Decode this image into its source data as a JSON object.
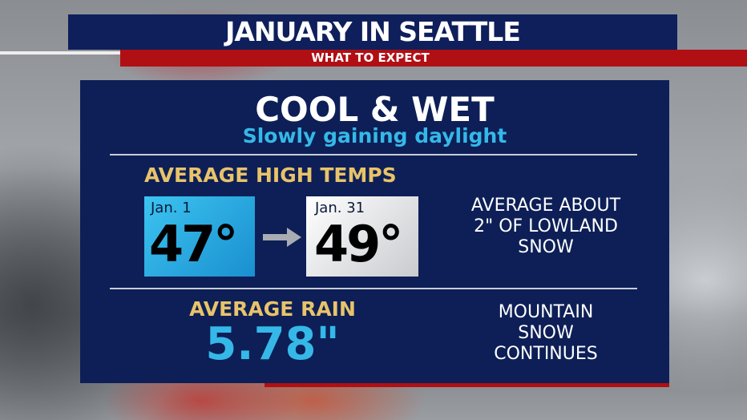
{
  "header": {
    "title": "JANUARY IN SEATTLE",
    "subtitle": "WHAT TO EXPECT"
  },
  "panel": {
    "headline": "COOL & WET",
    "subhead": "Slowly gaining daylight",
    "temps": {
      "label": "AVERAGE HIGH TEMPS",
      "start": {
        "date": "Jan. 1",
        "value": "47°"
      },
      "end": {
        "date": "Jan. 31",
        "value": "49°"
      }
    },
    "snow_note": [
      "AVERAGE ABOUT",
      "2\" OF LOWLAND",
      "SNOW"
    ],
    "rain": {
      "label": "AVERAGE RAIN",
      "value": "5.78\""
    },
    "mountain_note": [
      "MOUNTAIN",
      "SNOW",
      "CONTINUES"
    ]
  }
}
